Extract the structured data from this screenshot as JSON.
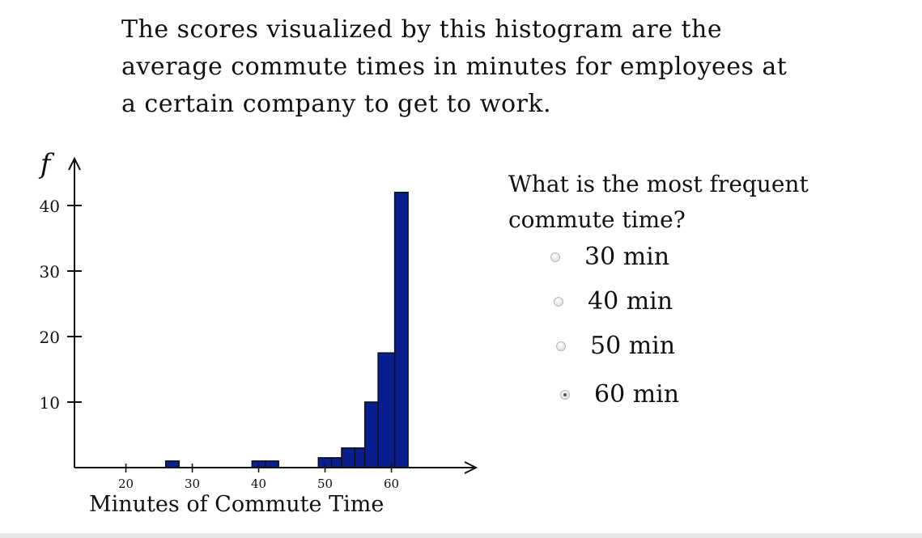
{
  "intro": {
    "lines": [
      "The scores visualized by this histogram are the",
      "average commute times in minutes for employees at",
      "a certain company to get to work."
    ]
  },
  "question": {
    "lines": [
      "What is the most frequent",
      "commute time?"
    ],
    "options": [
      {
        "label": "30 min",
        "checked": false
      },
      {
        "label": "40  min",
        "checked": false
      },
      {
        "label": "50 min",
        "checked": false
      },
      {
        "label": "60 min",
        "checked": true
      }
    ]
  },
  "chart_data": {
    "type": "bar",
    "title": "",
    "ylabel": "f",
    "xlabel": "Minutes of Commute Time",
    "x_ticks": [
      20,
      30,
      40,
      50,
      60
    ],
    "y_ticks": [
      10,
      20,
      30,
      40
    ],
    "xlim": [
      16,
      73
    ],
    "ylim": [
      0,
      46
    ],
    "bar_color": "#0a1f8f",
    "bars": [
      {
        "x0": 26,
        "x1": 28,
        "value": 1
      },
      {
        "x0": 39,
        "x1": 41,
        "value": 1
      },
      {
        "x0": 41,
        "x1": 43,
        "value": 1
      },
      {
        "x0": 49,
        "x1": 51,
        "value": 1.5
      },
      {
        "x0": 51,
        "x1": 52.5,
        "value": 1.5
      },
      {
        "x0": 52.5,
        "x1": 54.5,
        "value": 3
      },
      {
        "x0": 54.5,
        "x1": 56,
        "value": 3
      },
      {
        "x0": 56,
        "x1": 58,
        "value": 10
      },
      {
        "x0": 58,
        "x1": 60.5,
        "value": 17.5
      },
      {
        "x0": 60.5,
        "x1": 62.5,
        "value": 42
      }
    ]
  }
}
